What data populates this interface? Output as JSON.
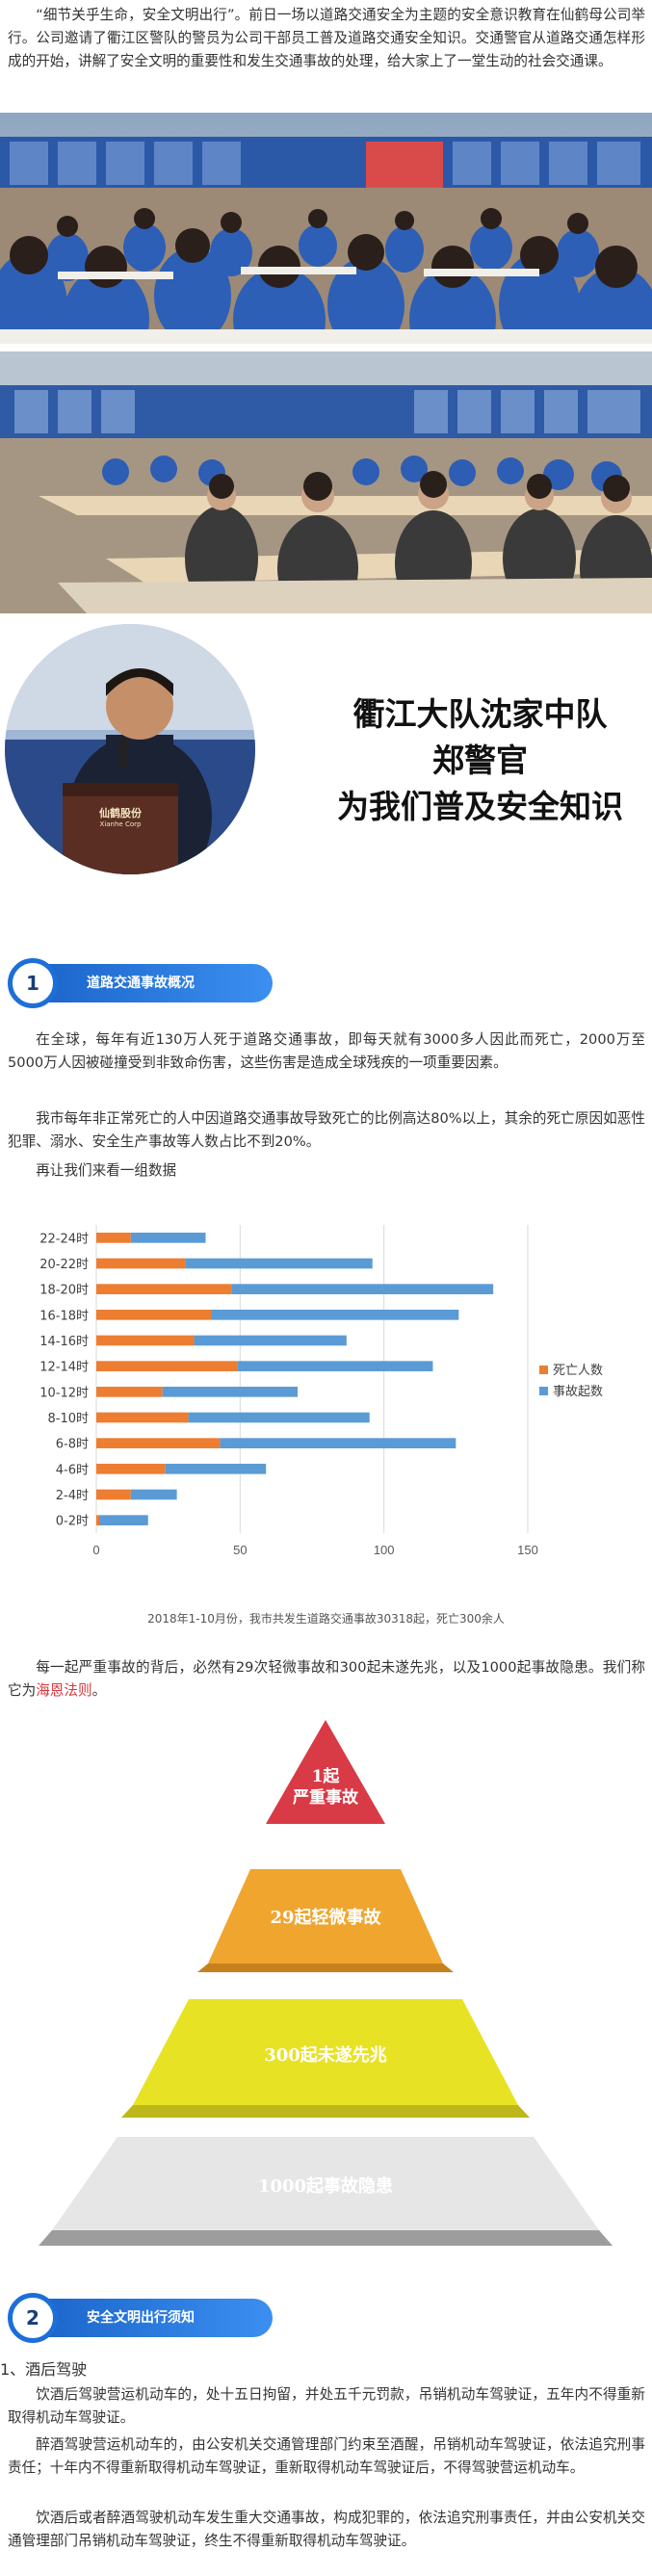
{
  "intro": {
    "paragraph": "“细节关乎生命，安全文明出行”。前日一场以道路交通安全为主题的安全意识教育在仙鹤母公司举行。公司邀请了衢江区警队的警员为公司干部员工普及道路交通安全知识。交通警官从道路交通怎样形成的开始，讲解了安全文明的重要性和发生交通事故的处理，给大家上了一堂生动的社会交通课。"
  },
  "speaker": {
    "lectern_logo": "仙鹤股份",
    "lectern_logo_sub": "Xianhe Corp",
    "title_lines": [
      "衢江大队沈家中队",
      "郑警官",
      "为我们普及安全知识"
    ]
  },
  "section1": {
    "number": "1",
    "label": "道路交通事故概况",
    "paragraphs": [
      "在全球，每年有近130万人死于道路交通事故，即每天就有3000多人因此而死亡，2000万至5000万人因被碰撞受到非致命伤害，这些伤害是造成全球残疾的一项重要因素。",
      "我市每年非正常死亡的人中因道路交通事故导致死亡的比例高达80%以上，其余的死亡原因如恶性犯罪、溺水、安全生产事故等人数占比不到20%。",
      "再让我们来看一组数据"
    ]
  },
  "chart_data": {
    "type": "bar",
    "orientation": "horizontal",
    "stacked": true,
    "categories": [
      "0-2时",
      "2-4时",
      "4-6时",
      "6-8时",
      "8-10时",
      "10-12时",
      "12-14时",
      "14-16时",
      "16-18时",
      "18-20时",
      "20-22时",
      "22-24时"
    ],
    "series": [
      {
        "name": "死亡人数",
        "color": "#ed7d31",
        "values": [
          1,
          12,
          24,
          43,
          32,
          23,
          49,
          34,
          40,
          47,
          31,
          12
        ]
      },
      {
        "name": "事故起数",
        "color": "#5b9bd5",
        "values": [
          17,
          16,
          35,
          82,
          63,
          47,
          68,
          53,
          86,
          91,
          65,
          26
        ]
      }
    ],
    "xlim": [
      0,
      150
    ],
    "xticks": [
      0,
      50,
      100,
      150
    ],
    "grid": true,
    "legend_position": "right",
    "caption": "2018年1-10月份，我市共发生道路交通事故30318起，死亡300余人"
  },
  "heinrich": {
    "paragraph_prefix": "每一起严重事故的背后，必然有29次轻微事故和300起未遂先兆，以及1000起事故隐患。我们称它为",
    "law_name": "海恩法则",
    "paragraph_suffix": "。",
    "levels": [
      {
        "lines": [
          "1起",
          "严重事故"
        ],
        "color": "#d83a46"
      },
      {
        "lines": [
          "29起轻微事故"
        ],
        "color": "#f0a52e"
      },
      {
        "lines": [
          "300起未遂先兆"
        ],
        "color": "#e8e224"
      },
      {
        "lines": [
          "1000起事故隐患"
        ],
        "color": "#e6e6e6"
      }
    ]
  },
  "section2": {
    "number": "2",
    "label": "安全文明出行须知",
    "heading": "1、酒后驾驶",
    "paragraphs": [
      "饮酒后驾驶营运机动车的，处十五日拘留，并处五千元罚款，吊销机动车驾驶证，五年内不得重新取得机动车驾驶证。",
      "醉酒驾驶营运机动车的，由公安机关交通管理部门约束至酒醒，吊销机动车驾驶证，依法追究刑事责任；十年内不得重新取得机动车驾驶证，重新取得机动车驾驶证后，不得驾驶营运机动车。",
      "饮酒后或者醉酒驾驶机动车发生重大交通事故，构成犯罪的，依法追究刑事责任，并由公安机关交通管理部门吊销机动车驾驶证，终生不得重新取得机动车驾驶证。"
    ]
  }
}
